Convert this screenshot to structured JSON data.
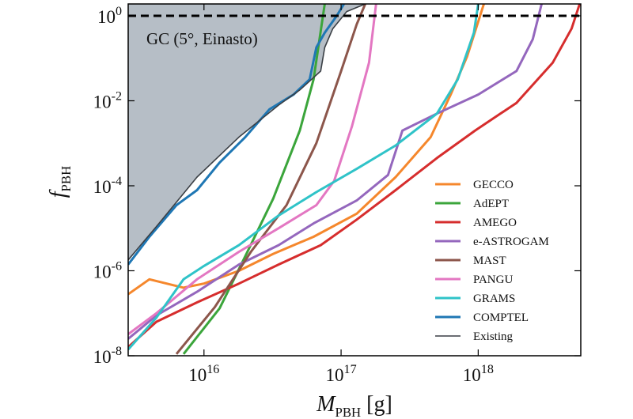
{
  "chart_data": {
    "type": "line",
    "xlabel": "M_PBH [g]",
    "ylabel": "f_PBH",
    "annotation": "GC (5°, Einasto)",
    "log_x": true,
    "log_y": true,
    "xlim": [
      2800000000000000.0,
      5.6e+18
    ],
    "ylim": [
      1e-08,
      1.9
    ],
    "xticks": [
      {
        "value": 1e+16,
        "label": "10^16"
      },
      {
        "value": 1e+17,
        "label": "10^17"
      },
      {
        "value": 1e+18,
        "label": "10^18"
      }
    ],
    "yticks": [
      {
        "value": 1e-08,
        "label": "10^-8"
      },
      {
        "value": 1e-06,
        "label": "10^-6"
      },
      {
        "value": 0.0001,
        "label": "10^-4"
      },
      {
        "value": 0.01,
        "label": "10^-2"
      },
      {
        "value": 1,
        "label": "10^0"
      }
    ],
    "hline": 1,
    "legend": "lower right",
    "series": [
      {
        "name": "GECCO",
        "color": "#f5872c",
        "x": [
          2800000000000000.0,
          4000000000000000.0,
          7100000000000000.0,
          1e+16,
          1.8e+16,
          3.2e+16,
          6.3e+16,
          1.3e+17,
          2.5e+17,
          4.5e+17,
          6.3e+17,
          8.3e+17,
          1.1e+18
        ],
        "values": [
          2.8e-07,
          6.3e-07,
          4e-07,
          5e-07,
          1e-06,
          2.5e-06,
          6.3e-06,
          2.2e-05,
          0.00016,
          0.0014,
          0.014,
          0.11,
          1.9
        ]
      },
      {
        "name": "AdEPT",
        "color": "#3ba53b",
        "x": [
          7100000000000000.0,
          1.3e+16,
          2e+16,
          3.2e+16,
          5e+16,
          6.3e+16,
          7.6e+16
        ],
        "values": [
          1.1e-08,
          1.3e-07,
          2.2e-06,
          5e-05,
          0.002,
          0.032,
          1.9
        ]
      },
      {
        "name": "AMEGO",
        "color": "#d62d2d",
        "x": [
          2800000000000000.0,
          4500000000000000.0,
          8900000000000000.0,
          1.8e+16,
          3.5e+16,
          7.1e+16,
          1.3e+17,
          2.5e+17,
          5e+17,
          9.5e+17,
          1.9e+18,
          3.5e+18,
          4.8e+18,
          5.5e+18
        ],
        "values": [
          1.6e-08,
          6.3e-08,
          1.8e-07,
          5e-07,
          1.4e-06,
          4e-06,
          1.6e-05,
          7.9e-05,
          0.00045,
          0.002,
          0.0089,
          0.079,
          0.5,
          1.9
        ]
      },
      {
        "name": "e-ASTROGAM",
        "color": "#9467bd",
        "x": [
          2800000000000000.0,
          4500000000000000.0,
          8900000000000000.0,
          1.8e+16,
          3.5e+16,
          6.3e+16,
          1.3e+17,
          2.2e+17,
          2.8e+17,
          5e+17,
          1e+18,
          1.9e+18,
          2.5e+18,
          2.9e+18
        ],
        "values": [
          2.5e-08,
          8.9e-08,
          3.2e-07,
          1.4e-06,
          4e-06,
          1.3e-05,
          4.5e-05,
          0.00018,
          0.002,
          0.005,
          0.014,
          0.05,
          0.28,
          1.9
        ]
      },
      {
        "name": "MAST",
        "color": "#8c564b",
        "x": [
          6300000000000000.0,
          1.2e+16,
          2.2e+16,
          4e+16,
          6.6e+16,
          1e+17,
          1.3e+17,
          1.5e+17
        ],
        "values": [
          1.1e-08,
          1.4e-07,
          2.8e-06,
          3.5e-05,
          0.001,
          0.05,
          0.63,
          1.9
        ]
      },
      {
        "name": "PANGU",
        "color": "#e377c2",
        "x": [
          2800000000000000.0,
          4500000000000000.0,
          8900000000000000.0,
          1.8e+16,
          3.5e+16,
          6.6e+16,
          8.9e+16,
          1.2e+17,
          1.6e+17,
          1.8e+17
        ],
        "values": [
          3.2e-08,
          1e-07,
          6.3e-07,
          2.8e-06,
          1e-05,
          3.5e-05,
          0.00013,
          0.0025,
          0.079,
          1.9
        ]
      },
      {
        "name": "GRAMS",
        "color": "#2fc3c8",
        "x": [
          2800000000000000.0,
          4500000000000000.0,
          7100000000000000.0,
          1e+16,
          1.8e+16,
          3.5e+16,
          6.6e+16,
          1.3e+17,
          2.5e+17,
          5e+17,
          7.1e+17,
          9.3e+17,
          1e+18
        ],
        "values": [
          1.4e-08,
          7.9e-08,
          6.3e-07,
          1.3e-06,
          4e-06,
          2e-05,
          7.1e-05,
          0.00025,
          0.00089,
          0.005,
          0.032,
          0.4,
          1.9
        ]
      },
      {
        "name": "COMPTEL",
        "color": "#1f77b4",
        "x": [
          2800000000000000.0,
          4000000000000000.0,
          6300000000000000.0,
          8900000000000000.0,
          1.3e+16,
          2e+16,
          3e+16,
          4.5e+16,
          5.9e+16,
          6.6e+16,
          7.6e+16,
          9.3e+16,
          1.05e+17
        ],
        "values": [
          1.4e-06,
          6.3e-06,
          3.5e-05,
          7.9e-05,
          0.00035,
          0.0014,
          0.0063,
          0.014,
          0.032,
          0.18,
          0.4,
          1,
          1.9
        ]
      },
      {
        "name": "Existing",
        "color": "#3a3f45",
        "fill": "#b6bec6",
        "x": [
          2800000000000000.0,
          4500000000000000.0,
          8900000000000000.0,
          1.8e+16,
          3.5e+16,
          5e+16,
          7.1e+16,
          7.6e+16,
          8.7e+16,
          1.1e+17,
          1.5e+17
        ],
        "values": [
          1.8e-06,
          1.1e-05,
          0.00016,
          0.0014,
          0.0079,
          0.018,
          0.05,
          0.18,
          0.5,
          1.26,
          1.9
        ]
      }
    ]
  }
}
